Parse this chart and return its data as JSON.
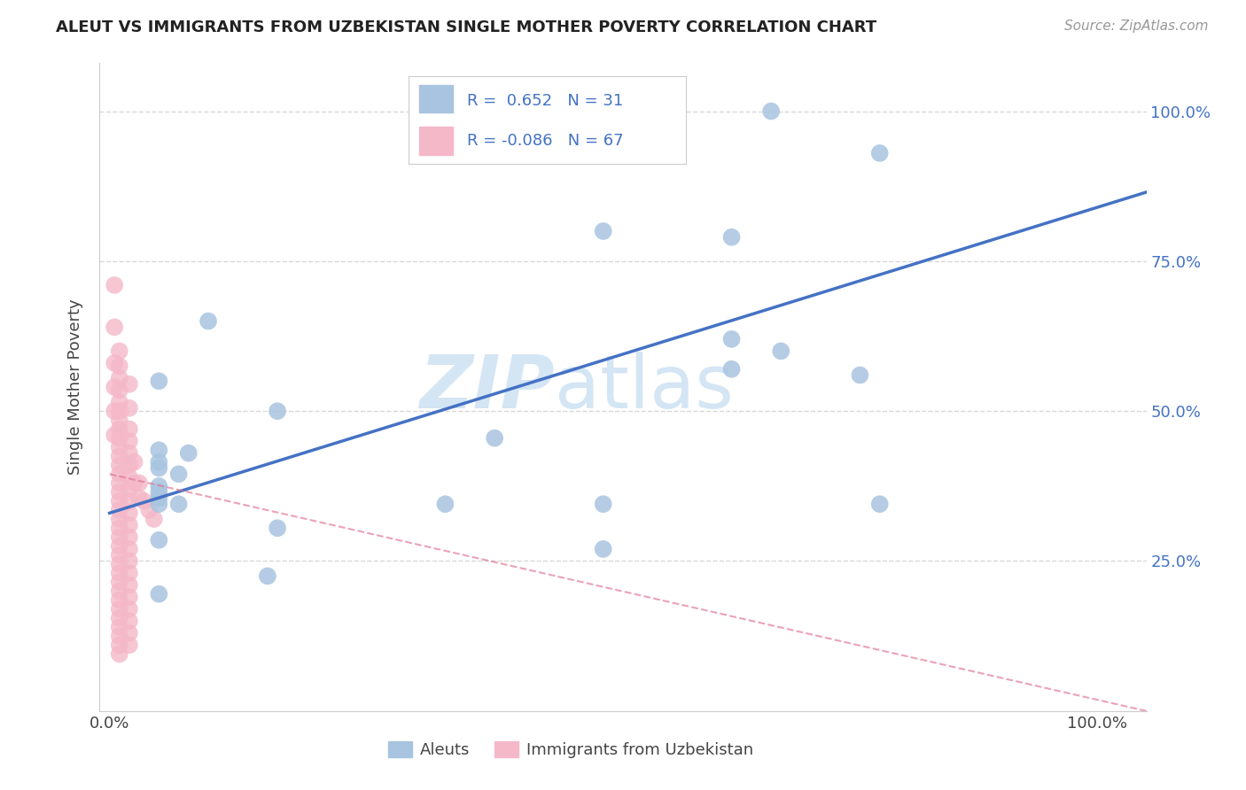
{
  "title": "ALEUT VS IMMIGRANTS FROM UZBEKISTAN SINGLE MOTHER POVERTY CORRELATION CHART",
  "source": "Source: ZipAtlas.com",
  "ylabel": "Single Mother Poverty",
  "legend_aleut_R": "R =  0.652",
  "legend_aleut_N": "N = 31",
  "legend_uzb_R": "R = -0.086",
  "legend_uzb_N": "N = 67",
  "aleut_color": "#a8c4e0",
  "aleut_line_color": "#4472c4",
  "uzb_color": "#f4b8c8",
  "uzb_line_color": "#e07090",
  "watermark_1": "ZIP",
  "watermark_2": "atlas",
  "aleut_points": [
    [
      0.33,
      1.0
    ],
    [
      0.67,
      1.0
    ],
    [
      0.78,
      0.93
    ],
    [
      0.5,
      0.8
    ],
    [
      0.63,
      0.79
    ],
    [
      0.1,
      0.65
    ],
    [
      0.63,
      0.62
    ],
    [
      0.68,
      0.6
    ],
    [
      0.63,
      0.57
    ],
    [
      0.76,
      0.56
    ],
    [
      0.05,
      0.55
    ],
    [
      0.17,
      0.5
    ],
    [
      0.39,
      0.455
    ],
    [
      0.05,
      0.435
    ],
    [
      0.08,
      0.43
    ],
    [
      0.05,
      0.415
    ],
    [
      0.05,
      0.405
    ],
    [
      0.07,
      0.395
    ],
    [
      0.05,
      0.375
    ],
    [
      0.05,
      0.365
    ],
    [
      0.05,
      0.355
    ],
    [
      0.05,
      0.345
    ],
    [
      0.07,
      0.345
    ],
    [
      0.34,
      0.345
    ],
    [
      0.5,
      0.345
    ],
    [
      0.78,
      0.345
    ],
    [
      0.17,
      0.305
    ],
    [
      0.05,
      0.285
    ],
    [
      0.16,
      0.225
    ],
    [
      0.05,
      0.195
    ],
    [
      0.5,
      0.27
    ]
  ],
  "uzb_points": [
    [
      0.005,
      0.71
    ],
    [
      0.005,
      0.64
    ],
    [
      0.01,
      0.6
    ],
    [
      0.01,
      0.575
    ],
    [
      0.01,
      0.555
    ],
    [
      0.01,
      0.535
    ],
    [
      0.01,
      0.515
    ],
    [
      0.01,
      0.5
    ],
    [
      0.01,
      0.485
    ],
    [
      0.01,
      0.47
    ],
    [
      0.01,
      0.455
    ],
    [
      0.01,
      0.44
    ],
    [
      0.01,
      0.425
    ],
    [
      0.01,
      0.41
    ],
    [
      0.01,
      0.395
    ],
    [
      0.01,
      0.38
    ],
    [
      0.01,
      0.365
    ],
    [
      0.01,
      0.35
    ],
    [
      0.01,
      0.335
    ],
    [
      0.01,
      0.32
    ],
    [
      0.01,
      0.305
    ],
    [
      0.01,
      0.29
    ],
    [
      0.01,
      0.275
    ],
    [
      0.01,
      0.26
    ],
    [
      0.01,
      0.245
    ],
    [
      0.01,
      0.23
    ],
    [
      0.01,
      0.215
    ],
    [
      0.01,
      0.2
    ],
    [
      0.01,
      0.185
    ],
    [
      0.01,
      0.17
    ],
    [
      0.01,
      0.155
    ],
    [
      0.01,
      0.14
    ],
    [
      0.01,
      0.125
    ],
    [
      0.01,
      0.11
    ],
    [
      0.01,
      0.095
    ],
    [
      0.02,
      0.545
    ],
    [
      0.02,
      0.505
    ],
    [
      0.02,
      0.47
    ],
    [
      0.02,
      0.45
    ],
    [
      0.02,
      0.43
    ],
    [
      0.02,
      0.41
    ],
    [
      0.02,
      0.39
    ],
    [
      0.02,
      0.37
    ],
    [
      0.02,
      0.35
    ],
    [
      0.02,
      0.33
    ],
    [
      0.02,
      0.31
    ],
    [
      0.02,
      0.29
    ],
    [
      0.02,
      0.27
    ],
    [
      0.02,
      0.25
    ],
    [
      0.02,
      0.23
    ],
    [
      0.02,
      0.21
    ],
    [
      0.02,
      0.19
    ],
    [
      0.02,
      0.17
    ],
    [
      0.02,
      0.15
    ],
    [
      0.02,
      0.13
    ],
    [
      0.02,
      0.11
    ],
    [
      0.025,
      0.415
    ],
    [
      0.025,
      0.38
    ],
    [
      0.03,
      0.38
    ],
    [
      0.03,
      0.355
    ],
    [
      0.035,
      0.35
    ],
    [
      0.04,
      0.335
    ],
    [
      0.045,
      0.32
    ],
    [
      0.005,
      0.58
    ],
    [
      0.005,
      0.54
    ],
    [
      0.005,
      0.5
    ],
    [
      0.005,
      0.46
    ]
  ],
  "ylim": [
    0.0,
    1.08
  ],
  "xlim": [
    -0.01,
    1.05
  ],
  "yticks": [
    0.25,
    0.5,
    0.75,
    1.0
  ],
  "ytick_labels": [
    "25.0%",
    "50.0%",
    "75.0%",
    "100.0%"
  ],
  "xticks": [
    0.0,
    1.0
  ],
  "xtick_labels": [
    "0.0%",
    "100.0%"
  ],
  "background_color": "#ffffff",
  "grid_color": "#d8d8d8",
  "aleut_line_x0": 0.0,
  "aleut_line_y0": 0.33,
  "aleut_line_x1": 1.05,
  "aleut_line_y1": 0.865,
  "uzb_line_x0": 0.0,
  "uzb_line_y0": 0.395,
  "uzb_line_x1": 1.05,
  "uzb_line_y1": 0.0
}
